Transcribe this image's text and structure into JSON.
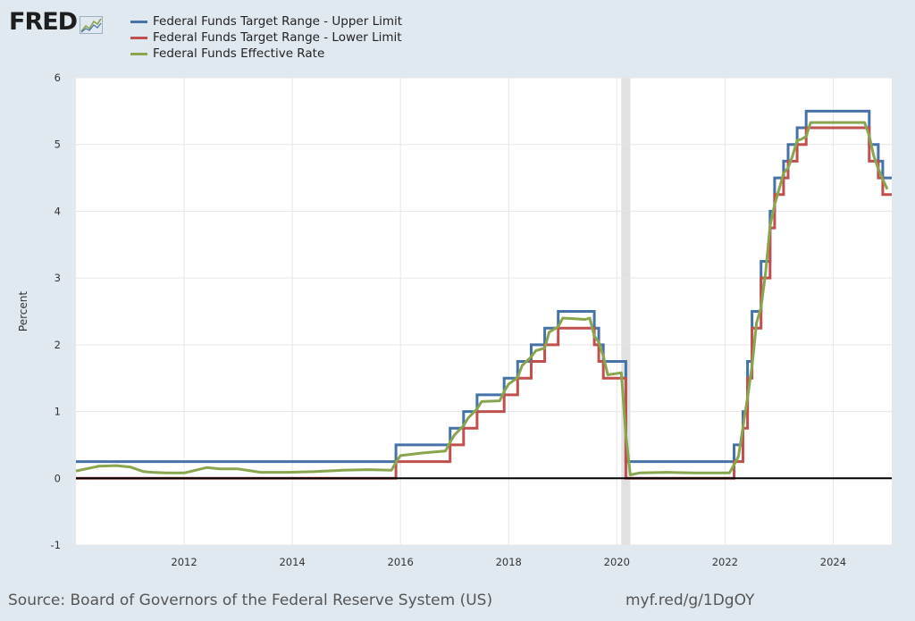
{
  "header": {
    "logo_text": "FRED",
    "logo_icon": "fred-graph-icon"
  },
  "footer": {
    "source": "Source: Board of Governors of the Federal Reserve System (US)",
    "short_url": "myf.red/g/1DgOY"
  },
  "colors": {
    "upper": "#4572a7",
    "lower": "#c0504d",
    "effective": "#89a54e",
    "background": "#e1e9f0",
    "plot": "#ffffff",
    "recession": "#e1e1e1",
    "grid": "#e6e6e6",
    "zero_line": "#000000"
  },
  "chart_data": {
    "type": "line",
    "title": "",
    "xlabel": "",
    "ylabel": "Percent",
    "xlim": [
      "2010-01",
      "2025-02"
    ],
    "ylim": [
      -1,
      6
    ],
    "x_ticks": [
      "2012",
      "2014",
      "2016",
      "2018",
      "2020",
      "2022",
      "2024"
    ],
    "y_ticks": [
      "-1",
      "0",
      "1",
      "2",
      "3",
      "4",
      "5",
      "6"
    ],
    "grid": true,
    "legend_position": "top-left",
    "recession": {
      "start": "2020-02",
      "end": "2020-04"
    },
    "series": [
      {
        "name": "Federal Funds Target Range - Upper Limit",
        "step": true,
        "data": [
          [
            "2010-01",
            0.25
          ],
          [
            "2015-12",
            0.5
          ],
          [
            "2016-12",
            0.75
          ],
          [
            "2017-03",
            1.0
          ],
          [
            "2017-06",
            1.25
          ],
          [
            "2017-12",
            1.5
          ],
          [
            "2018-03",
            1.75
          ],
          [
            "2018-06",
            2.0
          ],
          [
            "2018-09",
            2.25
          ],
          [
            "2018-12",
            2.5
          ],
          [
            "2019-08",
            2.25
          ],
          [
            "2019-09",
            2.0
          ],
          [
            "2019-10",
            1.75
          ],
          [
            "2020-03",
            1.25
          ],
          [
            "2020-03",
            0.25
          ],
          [
            "2022-03",
            0.5
          ],
          [
            "2022-05",
            1.0
          ],
          [
            "2022-06",
            1.75
          ],
          [
            "2022-07",
            2.5
          ],
          [
            "2022-09",
            3.25
          ],
          [
            "2022-11",
            4.0
          ],
          [
            "2022-12",
            4.5
          ],
          [
            "2023-02",
            4.75
          ],
          [
            "2023-03",
            5.0
          ],
          [
            "2023-05",
            5.25
          ],
          [
            "2023-07",
            5.5
          ],
          [
            "2024-09",
            5.0
          ],
          [
            "2024-11",
            4.75
          ],
          [
            "2024-12",
            4.5
          ]
        ]
      },
      {
        "name": "Federal Funds Target Range - Lower Limit",
        "step": true,
        "data": [
          [
            "2010-01",
            0.0
          ],
          [
            "2015-12",
            0.25
          ],
          [
            "2016-12",
            0.5
          ],
          [
            "2017-03",
            0.75
          ],
          [
            "2017-06",
            1.0
          ],
          [
            "2017-12",
            1.25
          ],
          [
            "2018-03",
            1.5
          ],
          [
            "2018-06",
            1.75
          ],
          [
            "2018-09",
            2.0
          ],
          [
            "2018-12",
            2.25
          ],
          [
            "2019-08",
            2.0
          ],
          [
            "2019-09",
            1.75
          ],
          [
            "2019-10",
            1.5
          ],
          [
            "2020-03",
            1.0
          ],
          [
            "2020-03",
            0.0
          ],
          [
            "2022-03",
            0.25
          ],
          [
            "2022-05",
            0.75
          ],
          [
            "2022-06",
            1.5
          ],
          [
            "2022-07",
            2.25
          ],
          [
            "2022-09",
            3.0
          ],
          [
            "2022-11",
            3.75
          ],
          [
            "2022-12",
            4.25
          ],
          [
            "2023-02",
            4.5
          ],
          [
            "2023-03",
            4.75
          ],
          [
            "2023-05",
            5.0
          ],
          [
            "2023-07",
            5.25
          ],
          [
            "2024-09",
            4.75
          ],
          [
            "2024-11",
            4.5
          ],
          [
            "2024-12",
            4.25
          ]
        ]
      },
      {
        "name": "Federal Funds Effective Rate",
        "step": false,
        "data": [
          [
            "2010-01",
            0.11
          ],
          [
            "2010-06",
            0.18
          ],
          [
            "2010-10",
            0.19
          ],
          [
            "2011-01",
            0.17
          ],
          [
            "2011-04",
            0.1
          ],
          [
            "2011-06",
            0.09
          ],
          [
            "2011-09",
            0.08
          ],
          [
            "2012-01",
            0.08
          ],
          [
            "2012-06",
            0.16
          ],
          [
            "2012-09",
            0.14
          ],
          [
            "2013-01",
            0.14
          ],
          [
            "2013-06",
            0.09
          ],
          [
            "2013-12",
            0.09
          ],
          [
            "2014-06",
            0.1
          ],
          [
            "2014-12",
            0.12
          ],
          [
            "2015-06",
            0.13
          ],
          [
            "2015-11",
            0.12
          ],
          [
            "2015-12",
            0.24
          ],
          [
            "2016-01",
            0.34
          ],
          [
            "2016-06",
            0.38
          ],
          [
            "2016-11",
            0.41
          ],
          [
            "2016-12",
            0.54
          ],
          [
            "2017-01",
            0.65
          ],
          [
            "2017-03",
            0.79
          ],
          [
            "2017-04",
            0.9
          ],
          [
            "2017-06",
            1.04
          ],
          [
            "2017-07",
            1.15
          ],
          [
            "2017-11",
            1.16
          ],
          [
            "2017-12",
            1.3
          ],
          [
            "2018-01",
            1.41
          ],
          [
            "2018-03",
            1.51
          ],
          [
            "2018-04",
            1.69
          ],
          [
            "2018-06",
            1.82
          ],
          [
            "2018-07",
            1.91
          ],
          [
            "2018-09",
            1.95
          ],
          [
            "2018-10",
            2.19
          ],
          [
            "2018-12",
            2.27
          ],
          [
            "2019-01",
            2.4
          ],
          [
            "2019-06",
            2.38
          ],
          [
            "2019-07",
            2.4
          ],
          [
            "2019-08",
            2.13
          ],
          [
            "2019-09",
            2.04
          ],
          [
            "2019-10",
            1.83
          ],
          [
            "2019-11",
            1.55
          ],
          [
            "2020-02",
            1.58
          ],
          [
            "2020-03",
            0.65
          ],
          [
            "2020-04",
            0.05
          ],
          [
            "2020-06",
            0.08
          ],
          [
            "2020-12",
            0.09
          ],
          [
            "2021-06",
            0.08
          ],
          [
            "2021-12",
            0.08
          ],
          [
            "2022-02",
            0.08
          ],
          [
            "2022-03",
            0.2
          ],
          [
            "2022-04",
            0.33
          ],
          [
            "2022-05",
            0.77
          ],
          [
            "2022-06",
            1.21
          ],
          [
            "2022-07",
            1.68
          ],
          [
            "2022-08",
            2.33
          ],
          [
            "2022-09",
            2.56
          ],
          [
            "2022-10",
            3.08
          ],
          [
            "2022-11",
            3.78
          ],
          [
            "2022-12",
            4.1
          ],
          [
            "2023-01",
            4.33
          ],
          [
            "2023-02",
            4.57
          ],
          [
            "2023-03",
            4.65
          ],
          [
            "2023-04",
            4.83
          ],
          [
            "2023-05",
            5.06
          ],
          [
            "2023-06",
            5.08
          ],
          [
            "2023-07",
            5.12
          ],
          [
            "2023-08",
            5.33
          ],
          [
            "2024-08",
            5.33
          ],
          [
            "2024-09",
            5.13
          ],
          [
            "2024-10",
            4.83
          ],
          [
            "2024-11",
            4.64
          ],
          [
            "2024-12",
            4.48
          ],
          [
            "2025-01",
            4.33
          ]
        ]
      }
    ]
  }
}
